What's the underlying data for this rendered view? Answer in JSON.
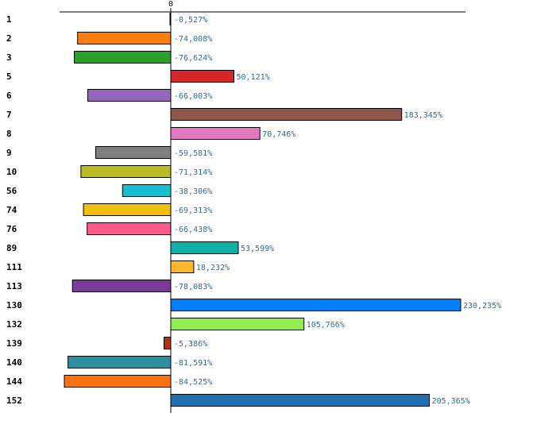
{
  "chart_data": {
    "type": "bar",
    "orientation": "horizontal",
    "categories": [
      "1",
      "2",
      "3",
      "5",
      "6",
      "7",
      "8",
      "9",
      "10",
      "56",
      "74",
      "76",
      "89",
      "111",
      "113",
      "130",
      "132",
      "139",
      "140",
      "144",
      "152"
    ],
    "values": [
      -0.527,
      -74.008,
      -76.624,
      50.121,
      -66.003,
      183.345,
      70.746,
      -59.581,
      -71.314,
      -38.306,
      -69.313,
      -66.438,
      53.599,
      18.232,
      -78.083,
      230.235,
      105.766,
      -5.386,
      -81.591,
      -84.525,
      205.365
    ],
    "value_labels": [
      "-0,527%",
      "-74,008%",
      "-76,624%",
      "50,121%",
      "-66,003%",
      "183,345%",
      "70,746%",
      "-59,581%",
      "-71,314%",
      "-38,306%",
      "-69,313%",
      "-66,438%",
      "53,599%",
      "18,232%",
      "-78,083%",
      "230,235%",
      "105,766%",
      "-5,386%",
      "-81,591%",
      "-84,525%",
      "205,365%"
    ],
    "colors": [
      "#1f77b4",
      "#ff7f0e",
      "#2ca02c",
      "#d62728",
      "#9467bd",
      "#8c564b",
      "#e377c2",
      "#7f7f7f",
      "#bcbd22",
      "#17becf",
      "#f0c010",
      "#ff5a8c",
      "#10b0a8",
      "#ffb830",
      "#7a3a96",
      "#0080ff",
      "#90ee50",
      "#b83010",
      "#2e8fa0",
      "#ff7010",
      "#2070b0"
    ],
    "x_tick": "0",
    "xlim": [
      -88,
      235
    ],
    "title": "",
    "xlabel": "",
    "ylabel": ""
  }
}
